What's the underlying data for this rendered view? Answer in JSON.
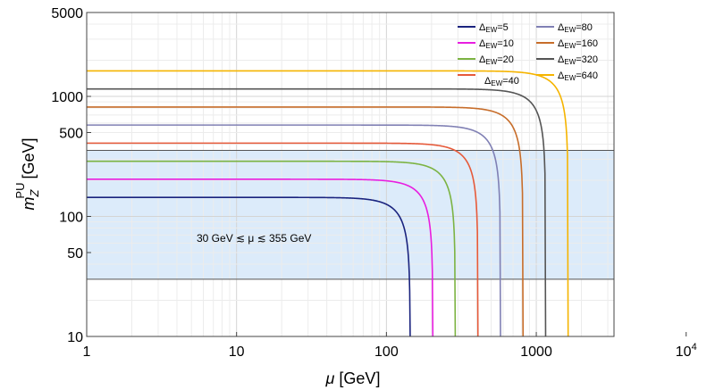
{
  "chart_data": {
    "type": "line",
    "title": "",
    "xlabel": "μ [GeV]",
    "ylabel": "m_Z^PU [GeV]",
    "ylabel_main": "m",
    "ylabel_sub": "Z",
    "ylabel_sup": "PU",
    "ylabel_unit": "[GeV]",
    "xlabel_var": "μ",
    "xlabel_unit": " [GeV]",
    "xscale": "log",
    "yscale": "log",
    "xlim": [
      1,
      3300
    ],
    "ylim": [
      10,
      5000
    ],
    "x_ticks": [
      {
        "value": 1,
        "label": "1"
      },
      {
        "value": 10,
        "label": "10"
      },
      {
        "value": 100,
        "label": "100"
      },
      {
        "value": 1000,
        "label": "1000"
      },
      {
        "value": 10000,
        "label": "10",
        "sup": "4"
      }
    ],
    "y_ticks": [
      {
        "value": 10,
        "label": "10"
      },
      {
        "value": 50,
        "label": "50"
      },
      {
        "value": 100,
        "label": "100"
      },
      {
        "value": 500,
        "label": "500"
      },
      {
        "value": 1000,
        "label": "1000"
      },
      {
        "value": 5000,
        "label": "5000"
      }
    ],
    "band": {
      "y_min": 30,
      "y_max": 355,
      "color": "#dcebfa",
      "edge_color": "#555555"
    },
    "annotation": "30 GeV ≲ μ ≲ 355 GeV",
    "legend_position": "top-right",
    "series": [
      {
        "name": "ΔEW=5",
        "sub": "EW",
        "value": "=5",
        "color": "#1a237e",
        "mu_max": 144,
        "plateau": 144
      },
      {
        "name": "ΔEW=10",
        "sub": "EW",
        "value": "=10",
        "color": "#e81ee0",
        "mu_max": 204,
        "plateau": 204
      },
      {
        "name": "ΔEW=20",
        "sub": "EW",
        "value": "=20",
        "color": "#7cb342",
        "mu_max": 288,
        "plateau": 288
      },
      {
        "name": "ΔEW=40",
        "sub": "EW",
        "value": "=40",
        "color": "#e65a3a",
        "mu_max": 408,
        "plateau": 408
      },
      {
        "name": "ΔEW=80",
        "sub": "EW",
        "value": "=80",
        "color": "#8080b4",
        "mu_max": 577,
        "plateau": 577
      },
      {
        "name": "ΔEW=160",
        "sub": "EW",
        "value": "=160",
        "color": "#c76d2a",
        "mu_max": 816,
        "plateau": 816
      },
      {
        "name": "ΔEW=320",
        "sub": "EW",
        "value": "=320",
        "color": "#555555",
        "mu_max": 1154,
        "plateau": 1154
      },
      {
        "name": "ΔEW=640",
        "sub": "EW",
        "value": "=640",
        "color": "#f5b400",
        "mu_max": 1631,
        "plateau": 1631
      }
    ]
  }
}
